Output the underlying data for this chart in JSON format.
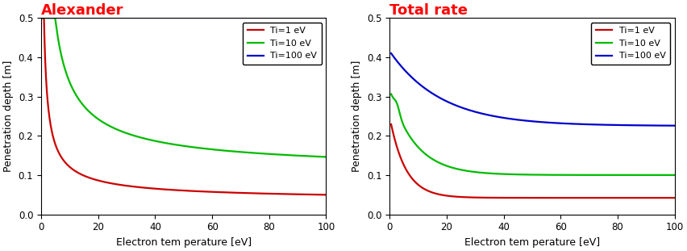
{
  "title_left": "Alexander",
  "title_right": "Total rate",
  "title_color": "#ff0000",
  "xlabel": "Electron tem perature [eV]",
  "ylabel": "Penetration depth [m]",
  "xlim": [
    0,
    100
  ],
  "ylim": [
    0.0,
    0.5
  ],
  "legend_labels": [
    "Ti=1 eV",
    "Ti=10 eV",
    "Ti=100 eV"
  ],
  "colors": [
    "#cc0000",
    "#00bb00",
    "#0000cc"
  ],
  "line_width": 1.6,
  "legend_fontsize": 8,
  "axis_fontsize": 9,
  "title_fontsize": 13,
  "figsize": [
    8.52,
    3.11
  ],
  "dpi": 100,
  "xticks": [
    0,
    20,
    40,
    60,
    80,
    100
  ],
  "yticks": [
    0.0,
    0.1,
    0.2,
    0.3,
    0.4,
    0.5
  ]
}
